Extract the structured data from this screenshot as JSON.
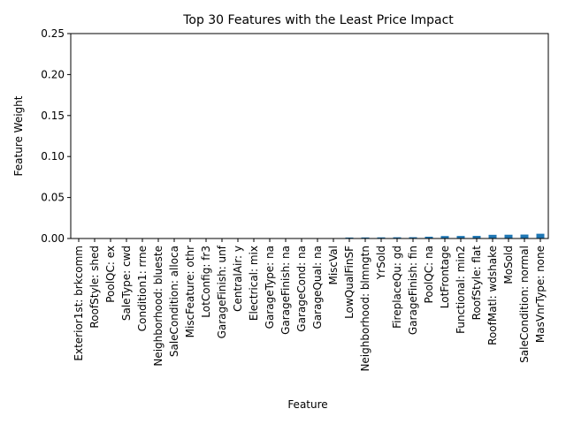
{
  "chart_data": {
    "type": "bar",
    "title": "Top 30 Features with the Least Price Impact",
    "xlabel": "Feature",
    "ylabel": "Feature Weight",
    "ylim": [
      0,
      0.25
    ],
    "yticks": [
      "0.00",
      "0.05",
      "0.10",
      "0.15",
      "0.20",
      "0.25"
    ],
    "grid": false,
    "legend": "none",
    "bar_color": "#1f77b4",
    "categories": [
      "Exterior1st: brkcomm",
      "RoofStyle: shed",
      "PoolQC: ex",
      "SaleType: cwd",
      "Condition1: rrne",
      "Neighborhood: blueste",
      "SaleCondition: alloca",
      "MiscFeature: othr",
      "LotConfig: fr3",
      "GarageFinish: unf",
      "CentralAir: y",
      "Electrical: mix",
      "GarageType: na",
      "GarageFinish: na",
      "GarageCond: na",
      "GarageQual: na",
      "MiscVal",
      "LowQualFinSF",
      "Neighborhood: blmngtn",
      "YrSold",
      "FireplaceQu: gd",
      "GarageFinish: fin",
      "PoolQC: na",
      "LotFrontage",
      "Functional: min2",
      "RoofStyle: flat",
      "RoofMatl: wdshake",
      "MoSold",
      "SaleCondition: normal",
      "MasVnrType: none"
    ],
    "values": [
      0.0001,
      0.0001,
      0.0001,
      0.0001,
      0.0001,
      0.0002,
      0.0002,
      0.0002,
      0.0002,
      0.0003,
      0.0003,
      0.0003,
      0.0003,
      0.0003,
      0.0003,
      0.0003,
      0.0004,
      0.0012,
      0.0013,
      0.0014,
      0.0015,
      0.0016,
      0.0022,
      0.003,
      0.0031,
      0.0032,
      0.0045,
      0.0046,
      0.0048,
      0.0058
    ]
  }
}
